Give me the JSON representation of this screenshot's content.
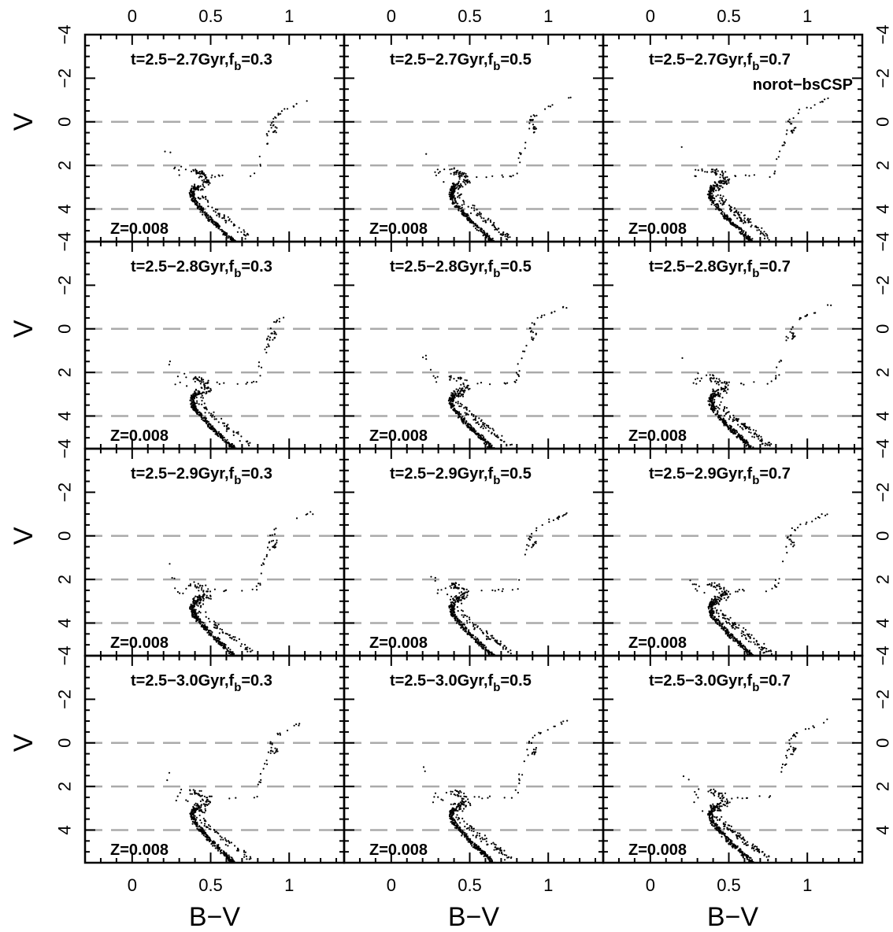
{
  "chart_data": {
    "type": "scatter",
    "layout": {
      "rows": 4,
      "cols": 3
    },
    "xlabel": "B−V",
    "ylabel": "V",
    "xlim": [
      -0.3,
      1.35
    ],
    "ylim": [
      5.5,
      -4.0
    ],
    "y_inverted": true,
    "x_ticks": [
      0,
      0.5,
      1
    ],
    "x_tick_labels": [
      "0",
      "0.5",
      "1"
    ],
    "y_ticks": [
      -4,
      -2,
      0,
      2,
      4
    ],
    "y_tick_labels": [
      "−4",
      "−2",
      "0",
      "2",
      "4"
    ],
    "reference_lines": {
      "y": [
        0,
        2,
        4
      ],
      "style": "dashed",
      "color": "#aaaaaa"
    },
    "panels": [
      {
        "row": 0,
        "col": 0,
        "title": "t=2.5−2.7Gyr,f",
        "title_sub": "b",
        "title_tail": "=0.3",
        "metallicity": "Z=0.008",
        "note": ""
      },
      {
        "row": 0,
        "col": 1,
        "title": "t=2.5−2.7Gyr,f",
        "title_sub": "b",
        "title_tail": "=0.5",
        "metallicity": "Z=0.008",
        "note": ""
      },
      {
        "row": 0,
        "col": 2,
        "title": "t=2.5−2.7Gyr,f",
        "title_sub": "b",
        "title_tail": "=0.7",
        "metallicity": "Z=0.008",
        "note": "norot−bsCSP"
      },
      {
        "row": 1,
        "col": 0,
        "title": "t=2.5−2.8Gyr,f",
        "title_sub": "b",
        "title_tail": "=0.3",
        "metallicity": "Z=0.008",
        "note": ""
      },
      {
        "row": 1,
        "col": 1,
        "title": "t=2.5−2.8Gyr,f",
        "title_sub": "b",
        "title_tail": "=0.5",
        "metallicity": "Z=0.008",
        "note": ""
      },
      {
        "row": 1,
        "col": 2,
        "title": "t=2.5−2.8Gyr,f",
        "title_sub": "b",
        "title_tail": "=0.7",
        "metallicity": "Z=0.008",
        "note": ""
      },
      {
        "row": 2,
        "col": 0,
        "title": "t=2.5−2.9Gyr,f",
        "title_sub": "b",
        "title_tail": "=0.3",
        "metallicity": "Z=0.008",
        "note": ""
      },
      {
        "row": 2,
        "col": 1,
        "title": "t=2.5−2.9Gyr,f",
        "title_sub": "b",
        "title_tail": "=0.5",
        "metallicity": "Z=0.008",
        "note": ""
      },
      {
        "row": 2,
        "col": 2,
        "title": "t=2.5−2.9Gyr,f",
        "title_sub": "b",
        "title_tail": "=0.7",
        "metallicity": "Z=0.008",
        "note": ""
      },
      {
        "row": 3,
        "col": 0,
        "title": "t=2.5−3.0Gyr,f",
        "title_sub": "b",
        "title_tail": "=0.3",
        "metallicity": "Z=0.008",
        "note": ""
      },
      {
        "row": 3,
        "col": 1,
        "title": "t=2.5−3.0Gyr,f",
        "title_sub": "b",
        "title_tail": "=0.5",
        "metallicity": "Z=0.008",
        "note": ""
      },
      {
        "row": 3,
        "col": 2,
        "title": "t=2.5−3.0Gyr,f",
        "title_sub": "b",
        "title_tail": "=0.7",
        "metallicity": "Z=0.008",
        "note": ""
      }
    ],
    "sequences": {
      "main_sequence_main": [
        [
          0.4,
          3.0
        ],
        [
          0.38,
          3.3
        ],
        [
          0.4,
          3.7
        ],
        [
          0.45,
          4.1
        ],
        [
          0.5,
          4.5
        ],
        [
          0.56,
          4.9
        ],
        [
          0.62,
          5.3
        ],
        [
          0.66,
          5.6
        ]
      ],
      "main_sequence_binary": [
        [
          0.42,
          3.3
        ],
        [
          0.48,
          3.8
        ],
        [
          0.55,
          4.2
        ],
        [
          0.62,
          4.6
        ],
        [
          0.7,
          5.0
        ],
        [
          0.76,
          5.4
        ]
      ],
      "turnoff_clump": [
        [
          0.38,
          2.2
        ],
        [
          0.45,
          2.4
        ],
        [
          0.48,
          2.8
        ],
        [
          0.4,
          2.9
        ],
        [
          0.44,
          3.1
        ]
      ],
      "subgiant_branch": [
        [
          0.48,
          2.5
        ],
        [
          0.6,
          2.5
        ],
        [
          0.75,
          2.5
        ],
        [
          0.8,
          2.4
        ]
      ],
      "red_giant_branch": [
        [
          0.8,
          2.4
        ],
        [
          0.82,
          1.6
        ],
        [
          0.86,
          0.8
        ],
        [
          0.88,
          0.2
        ],
        [
          0.9,
          -0.2
        ],
        [
          0.95,
          -0.5
        ],
        [
          1.05,
          -0.8
        ],
        [
          1.15,
          -1.1
        ]
      ],
      "red_clump": [
        [
          0.88,
          0.1
        ],
        [
          0.92,
          0.3
        ],
        [
          0.9,
          0.5
        ]
      ],
      "blue_stragglers": [
        [
          0.2,
          1.0
        ],
        [
          0.25,
          1.9
        ],
        [
          0.3,
          2.3
        ],
        [
          0.28,
          2.6
        ],
        [
          0.33,
          2.1
        ],
        [
          0.35,
          3.1
        ]
      ]
    }
  }
}
